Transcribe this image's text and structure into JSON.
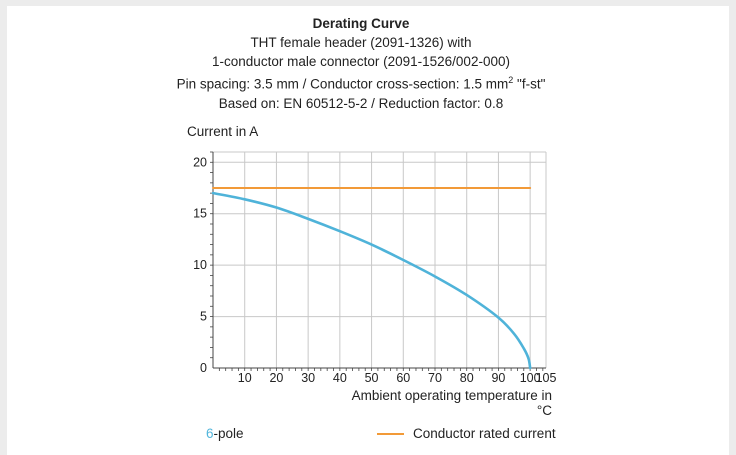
{
  "header": {
    "title": "Derating Curve",
    "line1": "THT female header (2091-1326) with",
    "line2": "1-conductor male connector (2091-1526/002-000)",
    "line3_pre": "Pin spacing: 3.5 mm / Conductor cross-section: 1.5 mm",
    "line3_sup": "2",
    "line3_post": " \"f-st\"",
    "line4": "Based on: EN 60512-5-2 / Reduction factor: 0.8"
  },
  "legend": {
    "pole_number": "6",
    "pole_suffix": "-pole",
    "rated_label": "Conductor rated current"
  },
  "colors": {
    "curve": "#4fb3d9",
    "rated": "#f29a38",
    "grid": "#c8c8c8"
  },
  "chart_data": {
    "type": "line",
    "ylabel": "Current in A",
    "xlabel": "Ambient operating temperature in °C",
    "xlim": [
      0,
      105
    ],
    "ylim": [
      0,
      21
    ],
    "x_ticks": [
      10,
      20,
      30,
      40,
      50,
      60,
      70,
      80,
      90,
      100,
      105
    ],
    "y_ticks": [
      0,
      5,
      10,
      15,
      20
    ],
    "grid": true,
    "series": [
      {
        "name": "6-pole",
        "x": [
          0,
          10,
          20,
          30,
          40,
          50,
          60,
          70,
          80,
          90,
          95,
          98,
          99.5,
          100
        ],
        "y": [
          17.0,
          16.4,
          15.6,
          14.5,
          13.3,
          12.0,
          10.5,
          8.9,
          7.1,
          4.9,
          3.3,
          1.9,
          0.9,
          0
        ]
      },
      {
        "name": "Conductor rated current",
        "x": [
          0,
          100
        ],
        "y": [
          17.5,
          17.5
        ]
      }
    ]
  }
}
